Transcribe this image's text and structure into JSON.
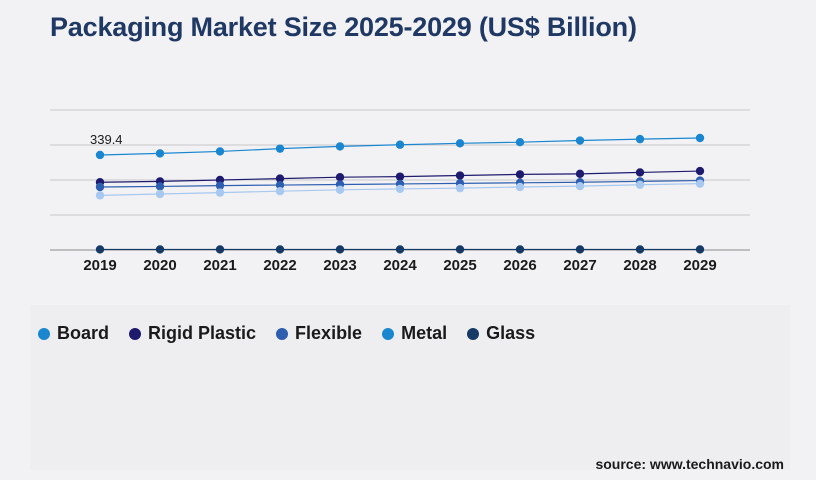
{
  "title": "Packaging Market Size 2025-2029 (US$ Billion)",
  "source": "source: www.technavio.com",
  "chart_data": {
    "type": "line",
    "title": "Packaging Market Size 2025-2029 (US$ Billion)",
    "xlabel": "",
    "ylabel": "",
    "categories": [
      "2019",
      "2020",
      "2021",
      "2022",
      "2023",
      "2024",
      "2025",
      "2026",
      "2027",
      "2028",
      "2029"
    ],
    "ylim": [
      0,
      500
    ],
    "grid": true,
    "legend_position": "bottom-left",
    "annotations": [
      {
        "series": "Board",
        "category": "2019",
        "text": "339.4"
      }
    ],
    "series": [
      {
        "name": "Board",
        "color": "#1a86d0",
        "values": [
          339.4,
          345,
          352,
          362,
          370,
          376,
          381,
          385,
          391,
          396,
          400
        ]
      },
      {
        "name": "Rigid Plastic",
        "color": "#1e1a6e",
        "values": [
          242,
          245,
          250,
          255,
          260,
          262,
          266,
          270,
          272,
          277,
          282
        ]
      },
      {
        "name": "Flexible",
        "color": "#2e5eb0",
        "values": [
          225,
          227,
          230,
          232,
          234,
          236,
          238,
          240,
          242,
          245,
          248
        ]
      },
      {
        "name": "Metal",
        "color": "#a7c8f0",
        "values": [
          195,
          200,
          205,
          210,
          215,
          218,
          221,
          225,
          228,
          233,
          237
        ]
      },
      {
        "name": "Glass",
        "color": "#153a66",
        "values": [
          2,
          2,
          2,
          2,
          2,
          2,
          2,
          2,
          2,
          2,
          2
        ]
      }
    ]
  },
  "legend": [
    {
      "label": "Board",
      "color": "#1a86d0"
    },
    {
      "label": "Rigid Plastic",
      "color": "#1e1a6e"
    },
    {
      "label": "Flexible",
      "color": "#2e5eb0"
    },
    {
      "label": "Metal",
      "color": "#1a86d0"
    },
    {
      "label": "Glass",
      "color": "#153a66"
    }
  ]
}
